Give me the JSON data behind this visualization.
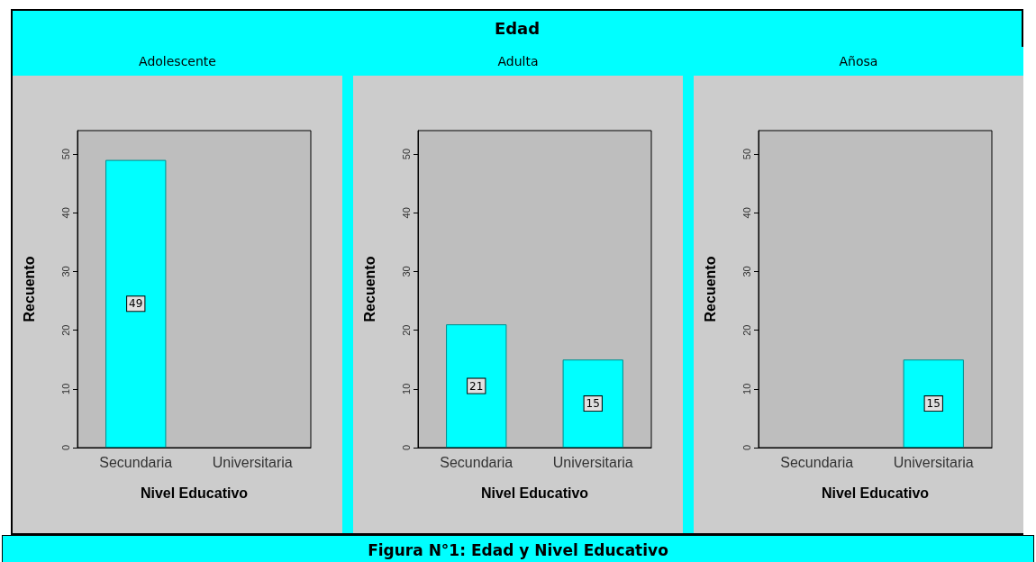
{
  "chart_data": [
    {
      "type": "bar",
      "title": "Adolescente",
      "annotations": [
        "Edad",
        "Figura N°1: Edad y Nivel Educativo"
      ],
      "categories": [
        "Secundaria",
        "Universitaria"
      ],
      "values": [
        49,
        null
      ],
      "color": "#00ffff",
      "xlabel": "Nivel Educativo",
      "ylabel": "Recuento",
      "ylim": [
        0,
        54
      ],
      "yticks": [
        0,
        10,
        20,
        30,
        40,
        50
      ],
      "data_labels": true,
      "grid": false
    },
    {
      "type": "bar",
      "title": "Adulta",
      "categories": [
        "Secundaria",
        "Universitaria"
      ],
      "values": [
        21,
        15
      ],
      "color": "#00ffff",
      "xlabel": "Nivel Educativo",
      "ylabel": "Recuento",
      "ylim": [
        0,
        54
      ],
      "yticks": [
        0,
        10,
        20,
        30,
        40,
        50
      ],
      "data_labels": true,
      "grid": false
    },
    {
      "type": "bar",
      "title": "Añosa",
      "categories": [
        "Secundaria",
        "Universitaria"
      ],
      "values": [
        null,
        15
      ],
      "color": "#00ffff",
      "xlabel": "Nivel Educativo",
      "ylabel": "Recuento",
      "ylim": [
        0,
        54
      ],
      "yticks": [
        0,
        10,
        20,
        30,
        40,
        50
      ],
      "data_labels": true,
      "grid": false
    }
  ]
}
